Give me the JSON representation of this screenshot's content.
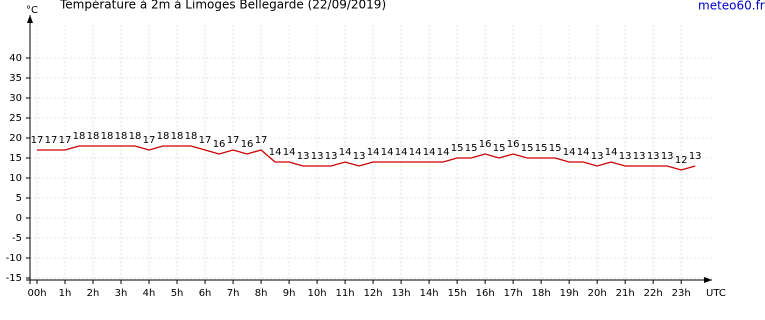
{
  "chart_data": {
    "type": "line",
    "title": "Température à 2m à Limoges Bellegarde (22/09/2019)",
    "source": "meteo60.fr",
    "y_label": "°C",
    "x_label": "UTC",
    "x": [
      0,
      0.5,
      1,
      1.5,
      2,
      2.5,
      3,
      3.5,
      4,
      4.5,
      5,
      5.5,
      6,
      6.5,
      7,
      7.5,
      8,
      8.5,
      9,
      9.5,
      10,
      10.5,
      11,
      11.5,
      12,
      12.5,
      13,
      13.5,
      14,
      14.5,
      15,
      15.5,
      16,
      16.5,
      17,
      17.5,
      18,
      18.5,
      19,
      19.5,
      20,
      20.5,
      21,
      21.5,
      22,
      22.5,
      23,
      23.5
    ],
    "series": [
      {
        "name": "Température",
        "color": "#cc0000",
        "values": [
          17,
          17,
          17,
          18,
          18,
          18,
          18,
          18,
          17,
          18,
          18,
          18,
          17,
          16,
          17,
          16,
          17,
          14,
          14,
          13,
          13,
          13,
          14,
          13,
          14,
          14,
          14,
          14,
          14,
          14,
          15,
          15,
          16,
          15,
          16,
          15,
          15,
          15,
          14,
          14,
          13,
          14,
          13,
          13,
          13,
          13,
          12,
          13
        ]
      }
    ],
    "xlim": [
      -0.25,
      24.1
    ],
    "xticks": [
      {
        "value": 0,
        "label": "00h"
      },
      {
        "value": 1,
        "label": "1h"
      },
      {
        "value": 2,
        "label": "2h"
      },
      {
        "value": 3,
        "label": "3h"
      },
      {
        "value": 4,
        "label": "4h"
      },
      {
        "value": 5,
        "label": "5h"
      },
      {
        "value": 6,
        "label": "6h"
      },
      {
        "value": 7,
        "label": "7h"
      },
      {
        "value": 8,
        "label": "8h"
      },
      {
        "value": 9,
        "label": "9h"
      },
      {
        "value": 10,
        "label": "10h"
      },
      {
        "value": 11,
        "label": "11h"
      },
      {
        "value": 12,
        "label": "12h"
      },
      {
        "value": 13,
        "label": "13h"
      },
      {
        "value": 14,
        "label": "14h"
      },
      {
        "value": 15,
        "label": "15h"
      },
      {
        "value": 16,
        "label": "16h"
      },
      {
        "value": 17,
        "label": "17h"
      },
      {
        "value": 18,
        "label": "18h"
      },
      {
        "value": 19,
        "label": "19h"
      },
      {
        "value": 20,
        "label": "20h"
      },
      {
        "value": 21,
        "label": "21h"
      },
      {
        "value": 22,
        "label": "22h"
      },
      {
        "value": 23,
        "label": "23h"
      }
    ],
    "ylim": [
      -15.5,
      50.75
    ],
    "yticks": [
      -15,
      -10,
      -5,
      0,
      5,
      10,
      15,
      20,
      25,
      30,
      35,
      40
    ],
    "grid": true
  }
}
